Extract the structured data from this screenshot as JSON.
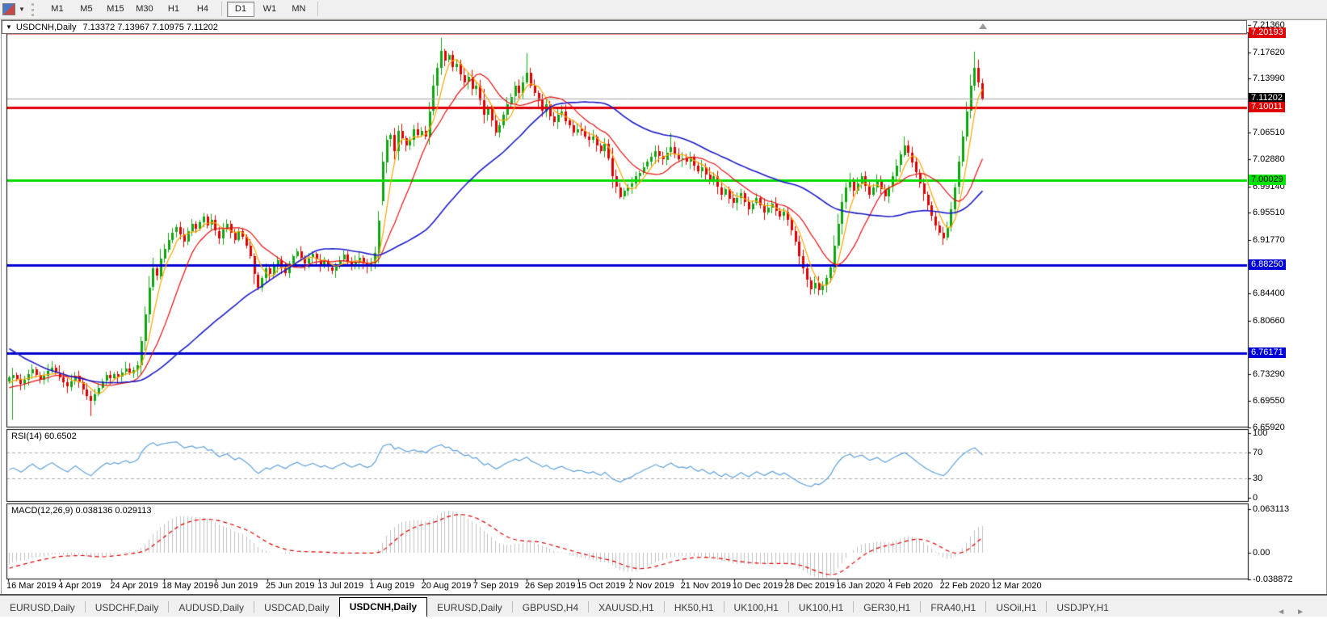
{
  "toolbar": {
    "timeframes": [
      "M1",
      "M5",
      "M15",
      "M30",
      "H1",
      "H4",
      "D1",
      "W1",
      "MN"
    ],
    "active_timeframe": "D1"
  },
  "window": {
    "title_symbol": "USDCNH,Daily",
    "title_ohlc": "7.13372 7.13967 7.10975 7.11202"
  },
  "icons": {
    "title_dropdown": "▼",
    "tab_scroll_left": "◄",
    "tab_scroll_right": "►"
  },
  "chart_data": {
    "type": "candlestick",
    "symbol": "USDCNH",
    "timeframe": "Daily",
    "last_bar": {
      "open": 7.13372,
      "high": 7.13967,
      "low": 7.10975,
      "close": 7.11202
    },
    "closes": [
      6.728,
      6.732,
      6.726,
      6.719,
      6.725,
      6.733,
      6.739,
      6.731,
      6.724,
      6.73,
      6.737,
      6.742,
      6.735,
      6.728,
      6.721,
      6.715,
      6.723,
      6.73,
      6.722,
      6.712,
      6.703,
      6.696,
      6.705,
      6.714,
      6.723,
      6.731,
      6.727,
      6.733,
      6.729,
      6.735,
      6.74,
      6.734,
      6.738,
      6.745,
      6.778,
      6.815,
      6.852,
      6.878,
      6.868,
      6.892,
      6.905,
      6.918,
      6.928,
      6.935,
      6.925,
      6.915,
      6.93,
      6.94,
      6.933,
      6.942,
      6.95,
      6.938,
      6.945,
      6.93,
      6.92,
      6.932,
      6.94,
      6.928,
      6.918,
      6.93,
      6.922,
      6.91,
      6.895,
      6.87,
      6.852,
      6.865,
      6.878,
      6.87,
      6.882,
      6.89,
      6.88,
      6.872,
      6.885,
      6.895,
      6.902,
      6.893,
      6.885,
      6.892,
      6.898,
      6.89,
      6.882,
      6.888,
      6.88,
      6.875,
      6.883,
      6.89,
      6.897,
      6.888,
      6.881,
      6.887,
      6.893,
      6.885,
      6.88,
      6.885,
      6.9,
      6.944,
      7.025,
      7.056,
      7.062,
      7.04,
      7.068,
      7.058,
      7.048,
      7.056,
      7.07,
      7.062,
      7.068,
      7.06,
      7.095,
      7.13,
      7.155,
      7.178,
      7.165,
      7.172,
      7.155,
      7.16,
      7.145,
      7.135,
      7.142,
      7.125,
      7.13,
      7.11,
      7.09,
      7.1,
      7.082,
      7.065,
      7.075,
      7.09,
      7.105,
      7.115,
      7.13,
      7.12,
      7.135,
      7.148,
      7.13,
      7.12,
      7.11,
      7.095,
      7.105,
      7.088,
      7.08,
      7.09,
      7.095,
      7.082,
      7.075,
      7.065,
      7.07,
      7.068,
      7.06,
      7.055,
      7.06,
      7.048,
      7.04,
      7.05,
      7.03,
      7.005,
      6.99,
      6.977,
      6.985,
      6.99,
      6.995,
      7.005,
      7.01,
      7.018,
      7.025,
      7.032,
      7.04,
      7.033,
      7.028,
      7.038,
      7.045,
      7.035,
      7.028,
      7.03,
      7.025,
      7.032,
      7.02,
      7.012,
      7.018,
      7.008,
      6.998,
      7.005,
      6.99,
      6.98,
      6.988,
      6.975,
      6.968,
      6.975,
      6.982,
      6.97,
      6.96,
      6.968,
      6.975,
      6.965,
      6.955,
      6.962,
      6.968,
      6.958,
      6.95,
      6.956,
      6.945,
      6.93,
      6.915,
      6.895,
      6.878,
      6.862,
      6.85,
      6.858,
      6.848,
      6.855,
      6.865,
      6.88,
      6.91,
      6.94,
      6.97,
      6.99,
      7.0,
      6.985,
      6.995,
      7.005,
      6.992,
      6.98,
      6.99,
      7.0,
      6.988,
      6.978,
      6.99,
      7.005,
      7.02,
      7.035,
      7.048,
      7.038,
      7.025,
      7.01,
      6.995,
      6.98,
      6.965,
      6.95,
      6.938,
      6.928,
      6.92,
      6.935,
      6.96,
      6.99,
      7.025,
      7.06,
      7.095,
      7.13,
      7.155,
      7.135,
      7.11202
    ],
    "history_closes": [
      6.92,
      6.915,
      6.905,
      6.91,
      6.898,
      6.89,
      6.882,
      6.875,
      6.88,
      6.87,
      6.86,
      6.852,
      6.845,
      6.85,
      6.84,
      6.83,
      6.82,
      6.812,
      6.805,
      6.798,
      6.79,
      6.782,
      6.775,
      6.768,
      6.772,
      6.762,
      6.755,
      6.748,
      6.742,
      6.748,
      6.74,
      6.732,
      6.725,
      6.73,
      6.722,
      6.718,
      6.724,
      6.716,
      6.71,
      6.715,
      6.708,
      6.702,
      6.71,
      6.718,
      6.712,
      6.706,
      6.714,
      6.72,
      6.716,
      6.722
    ],
    "candle_overrides": {
      "1": {
        "l": 6.67
      },
      "21": {
        "l": 6.675
      },
      "96": {
        "o": 6.97,
        "h": 7.039,
        "l": 6.965
      },
      "111": {
        "h": 7.196
      },
      "133": {
        "h": 7.175
      },
      "170": {
        "h": 7.065
      },
      "206": {
        "l": 6.842
      },
      "230": {
        "h": 7.06
      },
      "248": {
        "h": 7.177
      },
      "250": {
        "o": 7.13372,
        "h": 7.13967,
        "l": 7.10975
      }
    },
    "x_labels": [
      "16 Mar 2019",
      "4 Apr 2019",
      "24 Apr 2019",
      "18 May 2019",
      "6 Jun 2019",
      "25 Jun 2019",
      "13 Jul 2019",
      "1 Aug 2019",
      "20 Aug 2019",
      "7 Sep 2019",
      "26 Sep 2019",
      "15 Oct 2019",
      "2 Nov 2019",
      "21 Nov 2019",
      "10 Dec 2019",
      "28 Dec 2019",
      "16 Jan 2020",
      "4 Feb 2020",
      "22 Feb 2020",
      "12 Mar 2020"
    ],
    "y_axis_ticks": [
      "7.21360",
      "7.17620",
      "7.13990",
      "7.06510",
      "7.02880",
      "6.99140",
      "6.95510",
      "6.91770",
      "6.84400",
      "6.80660",
      "6.73290",
      "6.69550",
      "6.65920"
    ],
    "price_badges": [
      {
        "text": "7.20193",
        "bg": "#e00000",
        "fg": "#ffffff"
      },
      {
        "text": "7.11202",
        "bg": "#000000",
        "fg": "#ffffff"
      },
      {
        "text": "7.10011",
        "bg": "#e00000",
        "fg": "#ffffff"
      },
      {
        "text": "7.00029",
        "bg": "#00e400",
        "fg": "#000000"
      },
      {
        "text": "6.88250",
        "bg": "#0000d8",
        "fg": "#ffffff"
      },
      {
        "text": "6.76171",
        "bg": "#0000d8",
        "fg": "#ffffff"
      }
    ],
    "hlines": [
      {
        "price": 7.20193,
        "color": "#e00000",
        "width": 2
      },
      {
        "price": 7.10011,
        "color": "#e00000",
        "width": 3
      },
      {
        "price": 7.00029,
        "color": "#00dc00",
        "width": 3
      },
      {
        "price": 6.8825,
        "color": "#0000d0",
        "width": 3
      },
      {
        "price": 6.76171,
        "color": "#0000d0",
        "width": 3
      }
    ],
    "current_price_line": {
      "price": 7.11202,
      "color": "#a0a0a0"
    },
    "moving_averages": [
      {
        "period": 5,
        "color": "#ffa500"
      },
      {
        "period": 13,
        "color": "#e81010"
      },
      {
        "period": 45,
        "color": "#1a1ac8"
      }
    ],
    "rsi": {
      "label": "RSI(14) 60.6502",
      "period": 14,
      "levels": [
        70,
        30
      ],
      "axis": [
        "100",
        "70",
        "30",
        "0"
      ],
      "color": "#5fa0dc"
    },
    "macd": {
      "label": "MACD(12,26,9) 0.038136 0.029113",
      "fast": 12,
      "slow": 26,
      "signal": 9,
      "axis": [
        "0.063113",
        "0.00",
        "-0.038872"
      ],
      "bar_color": "#c0c0c0",
      "signal_color": "#e00000"
    },
    "colors": {
      "bull": "#11a511",
      "bear": "#de0000"
    }
  },
  "tabs": {
    "items": [
      "EURUSD,Daily",
      "USDCHF,Daily",
      "AUDUSD,Daily",
      "USDCAD,Daily",
      "USDCNH,Daily",
      "EURUSD,Daily",
      "GBPUSD,H4",
      "XAUUSD,H1",
      "HK50,H1",
      "UK100,H1",
      "UK100,H1",
      "GER30,H1",
      "FRA40,H1",
      "USOil,H1",
      "USDJPY,H1"
    ],
    "active_index": 4
  }
}
